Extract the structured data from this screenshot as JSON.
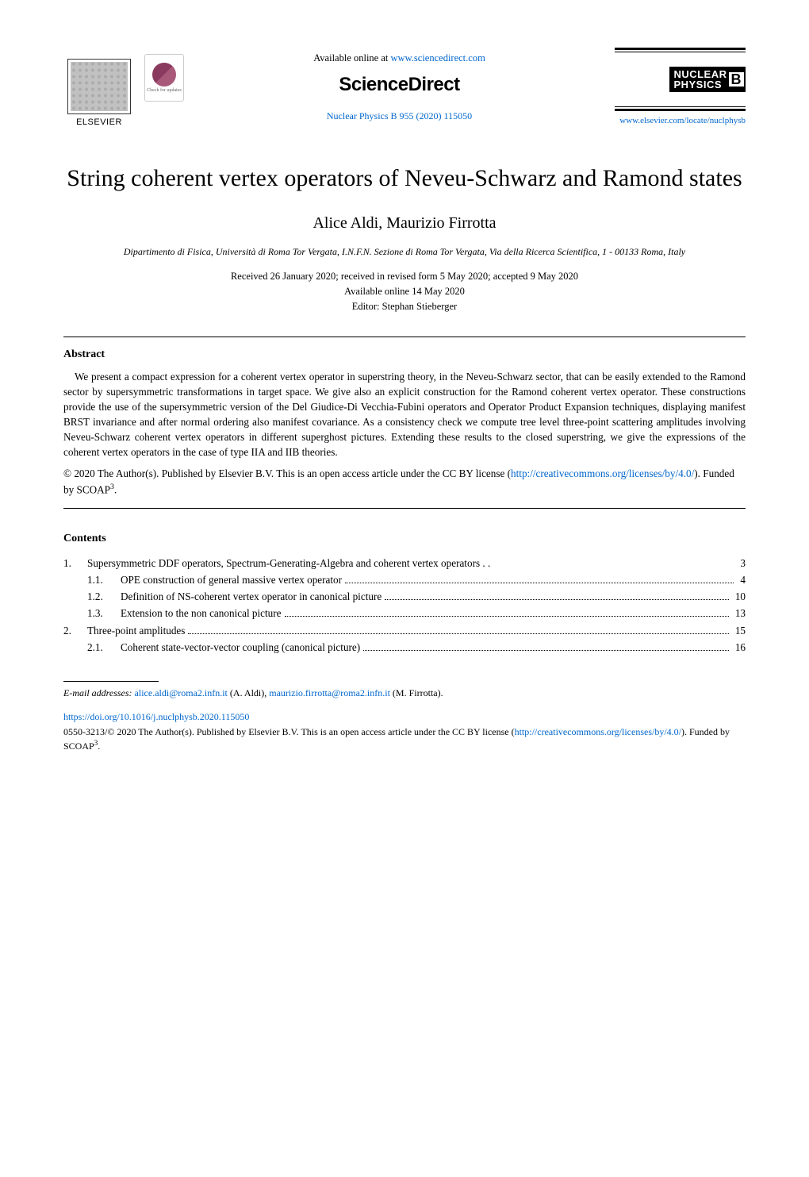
{
  "header": {
    "available_prefix": "Available online at ",
    "available_link": "www.sciencedirect.com",
    "brand": "ScienceDirect",
    "citation": "Nuclear Physics B 955 (2020) 115050",
    "elsevier": "ELSEVIER",
    "check_updates": "Check for updates",
    "np_line1": "NUCLEAR",
    "np_line2": "PHYSICS",
    "np_b": "B",
    "homepage": "www.elsevier.com/locate/nuclphysb"
  },
  "title": "String coherent vertex operators of Neveu-Schwarz and Ramond states",
  "authors": "Alice Aldi, Maurizio Firrotta",
  "affiliation": "Dipartimento di Fisica, Università di Roma Tor Vergata, I.N.F.N. Sezione di Roma Tor Vergata, Via della Ricerca Scientifica, 1 - 00133 Roma, Italy",
  "dates": {
    "received": "Received 26 January 2020; received in revised form 5 May 2020; accepted 9 May 2020",
    "online": "Available online 14 May 2020",
    "editor": "Editor: Stephan Stieberger"
  },
  "abstract": {
    "heading": "Abstract",
    "body": "We present a compact expression for a coherent vertex operator in superstring theory, in the Neveu-Schwarz sector, that can be easily extended to the Ramond sector by supersymmetric transformations in target space. We give also an explicit construction for the Ramond coherent vertex operator. These constructions provide the use of the supersymmetric version of the Del Giudice-Di Vecchia-Fubini operators and Operator Product Expansion techniques, displaying manifest BRST invariance and after normal ordering also manifest covariance. As a consistency check we compute tree level three-point scattering amplitudes involving Neveu-Schwarz coherent vertex operators in different superghost pictures. Extending these results to the closed superstring, we give the expressions of the coherent vertex operators in the case of type IIA and IIB theories.",
    "copyright_pre": "© 2020 The Author(s). Published by Elsevier B.V. This is an open access article under the CC BY license (",
    "copyright_link": "http://creativecommons.org/licenses/by/4.0/",
    "copyright_post": "). Funded by SCOAP",
    "copyright_sup": "3",
    "copyright_end": "."
  },
  "contents": {
    "heading": "Contents",
    "items": [
      {
        "num": "1.",
        "sub": "",
        "title": "Supersymmetric DDF operators, Spectrum-Generating-Algebra and coherent vertex operators . .",
        "page": "3",
        "dots": false
      },
      {
        "num": "",
        "sub": "1.1.",
        "title": "OPE construction of general massive vertex operator",
        "page": "4",
        "dots": true
      },
      {
        "num": "",
        "sub": "1.2.",
        "title": "Definition of NS-coherent vertex operator in canonical picture",
        "page": "10",
        "dots": true
      },
      {
        "num": "",
        "sub": "1.3.",
        "title": "Extension to the non canonical picture",
        "page": "13",
        "dots": true
      },
      {
        "num": "2.",
        "sub": "",
        "title": "Three-point amplitudes",
        "page": "15",
        "dots": true
      },
      {
        "num": "",
        "sub": "2.1.",
        "title": "Coherent state-vector-vector coupling (canonical picture)",
        "page": "16",
        "dots": true
      }
    ]
  },
  "footnote": {
    "label_italic": "E-mail addresses: ",
    "email1": "alice.aldi@roma2.infn.it",
    "name1": " (A. Aldi), ",
    "email2": "maurizio.firrotta@roma2.infn.it",
    "name2": " (M. Firrotta)."
  },
  "footer": {
    "doi": "https://doi.org/10.1016/j.nuclphysb.2020.115050",
    "issn_line_pre": "0550-3213/© 2020 The Author(s). Published by Elsevier B.V. This is an open access article under the CC BY license (",
    "issn_link": "http://creativecommons.org/licenses/by/4.0/",
    "issn_line_post": "). Funded by SCOAP",
    "issn_sup": "3",
    "issn_end": "."
  },
  "colors": {
    "link": "#0066cc",
    "text": "#000000",
    "bg": "#ffffff"
  }
}
